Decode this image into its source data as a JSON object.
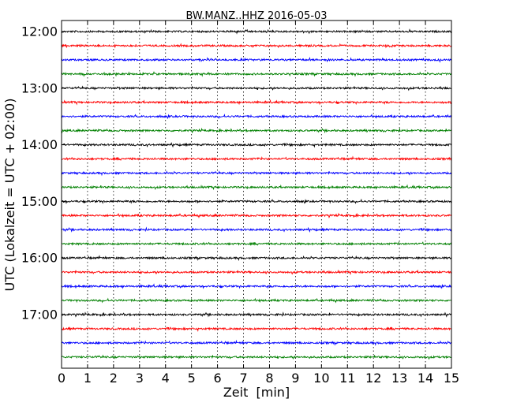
{
  "chart_data": {
    "type": "line",
    "title": "BW.MANZ..HHZ 2016-05-03",
    "xlabel": "Zeit  [min]",
    "ylabel": "UTC (Lokalzeit = UTC + 02:00)",
    "xlim": [
      0,
      15
    ],
    "x_ticks": [
      "0",
      "1",
      "2",
      "3",
      "4",
      "5",
      "6",
      "7",
      "8",
      "9",
      "10",
      "11",
      "12",
      "13",
      "14",
      "15"
    ],
    "y_ticks": [
      "12:00",
      "13:00",
      "14:00",
      "15:00",
      "16:00",
      "17:00"
    ],
    "trace_start_times": [
      "12:00",
      "12:15",
      "12:30",
      "12:45",
      "13:00",
      "13:15",
      "13:30",
      "13:45",
      "14:00",
      "14:15",
      "14:30",
      "14:45",
      "15:00",
      "15:15",
      "15:30",
      "15:45",
      "16:00",
      "16:15",
      "16:30",
      "16:45",
      "17:00",
      "17:15",
      "17:30",
      "17:45"
    ],
    "trace_colors": [
      "#000000",
      "#ff0000",
      "#0000ff",
      "#008000"
    ],
    "grid": "vertical dotted",
    "legend": "none"
  }
}
